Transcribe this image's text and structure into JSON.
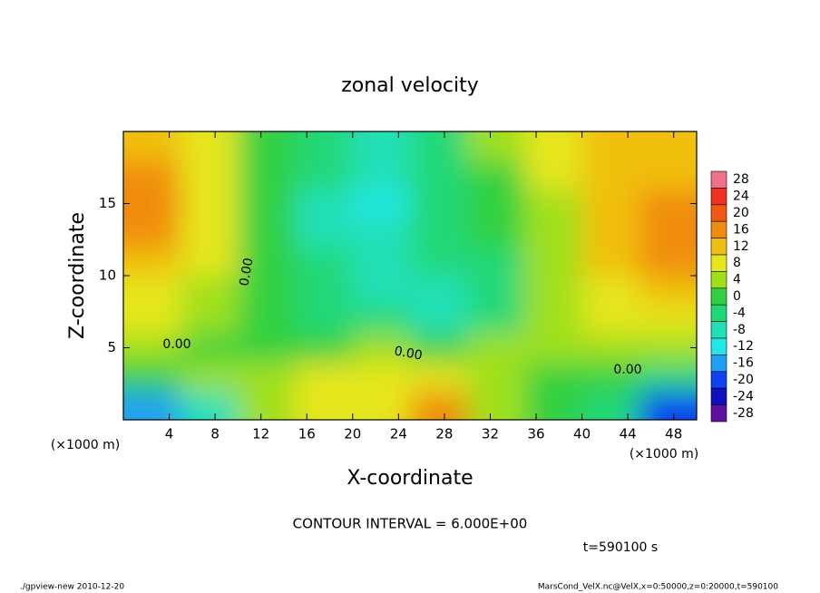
{
  "chart_data": {
    "type": "heatmap",
    "title": "zonal velocity",
    "x_label": "X-coordinate",
    "y_label": "Z-coordinate",
    "x_unit": "(×1000 m)",
    "y_unit": "(×1000 m)",
    "x": [
      2.5,
      7.5,
      12.5,
      17.5,
      22.5,
      27.5,
      32.5,
      37.5,
      42.5,
      47.5
    ],
    "y": [
      1,
      3,
      5,
      7,
      9,
      11,
      13,
      15,
      17,
      19
    ],
    "values": [
      [
        -16,
        -8,
        2,
        6,
        8,
        16,
        4,
        0,
        -6,
        -20
      ],
      [
        0,
        2,
        4,
        6,
        6,
        8,
        4,
        0,
        -2,
        -6
      ],
      [
        4,
        0,
        -2,
        0,
        2,
        0,
        4,
        2,
        4,
        4
      ],
      [
        6,
        2,
        -2,
        -4,
        -6,
        -10,
        -4,
        2,
        6,
        6
      ],
      [
        8,
        4,
        0,
        -6,
        -8,
        -10,
        -4,
        2,
        8,
        10
      ],
      [
        12,
        6,
        0,
        -6,
        -8,
        -6,
        -4,
        2,
        10,
        14
      ],
      [
        14,
        6,
        -2,
        -8,
        -10,
        -6,
        -2,
        4,
        12,
        16
      ],
      [
        14,
        6,
        -2,
        -8,
        -12,
        -6,
        -2,
        4,
        10,
        14
      ],
      [
        16,
        8,
        0,
        -6,
        -10,
        -6,
        0,
        6,
        10,
        12
      ],
      [
        10,
        6,
        0,
        -4,
        -8,
        -4,
        2,
        6,
        10,
        10
      ]
    ],
    "xlim": [
      0,
      50
    ],
    "ylim": [
      0,
      20
    ],
    "xticks": [
      4,
      8,
      12,
      16,
      20,
      24,
      28,
      32,
      36,
      40,
      44,
      48
    ],
    "yticks": [
      5,
      10,
      15
    ],
    "colorbar": {
      "ticks": [
        28,
        24,
        20,
        16,
        12,
        8,
        4,
        0,
        -4,
        -8,
        -12,
        -16,
        -20,
        -24,
        -28
      ],
      "colors": [
        "#f07088",
        "#f03020",
        "#f05a10",
        "#f08c10",
        "#f0c010",
        "#e6e61a",
        "#a0e01a",
        "#30d040",
        "#20d878",
        "#20e0b8",
        "#20e8e8",
        "#20a0f0",
        "#1040f0",
        "#1010c0",
        "#6010a0"
      ]
    },
    "contour_labels": [
      "0.00",
      "0.00",
      "0.00",
      "0.00"
    ],
    "footer": {
      "interval": "CONTOUR INTERVAL = 6.000E+00",
      "time": "t=590100 s",
      "program": "./gpview-new  2010-12-20",
      "source": "MarsCond_VelX.nc@VelX,x=0:50000,z=0:20000,t=590100"
    }
  }
}
